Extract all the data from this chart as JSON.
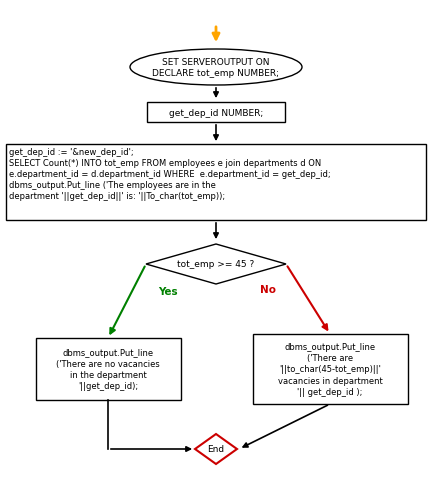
{
  "bg_color": "#ffffff",
  "arrow_color_start": "#FFA500",
  "arrow_color_black": "#000000",
  "arrow_color_yes": "#008000",
  "arrow_color_no": "#CC0000",
  "ellipse1_text": "SET SERVEROUTPUT ON\nDECLARE tot_emp NUMBER;",
  "rect1_text": "get_dep_id NUMBER;",
  "rect2_text": "get_dep_id := '&new_dep_id';\nSELECT Count(*) INTO tot_emp FROM employees e join departments d ON\ne.department_id = d.department_id WHERE  e.department_id = get_dep_id;\ndbms_output.Put_line ('The employees are in the\ndepartment '||get_dep_id||' is: '||To_char(tot_emp));",
  "diamond_text": "tot_emp >= 45 ?",
  "rect3_text": "dbms_output.Put_line\n('There are no vacancies\nin the department\n'||get_dep_id);",
  "rect4_text": "dbms_output.Put_line\n('There are\n'||to_char(45-tot_emp)||'\nvacancies in department\n'|| get_dep_id );",
  "end_text": "End",
  "yes_label": "Yes",
  "no_label": "No",
  "font_size": 6.5,
  "font_size_label": 7.5
}
